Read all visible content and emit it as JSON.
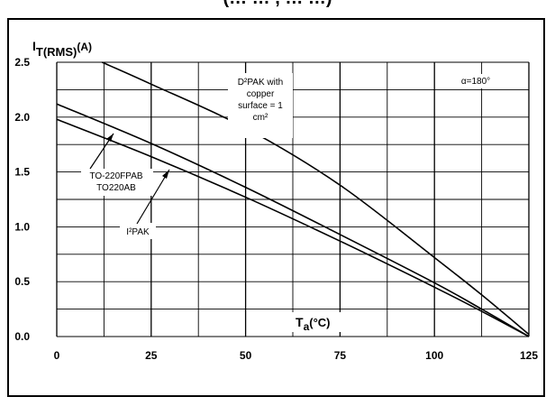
{
  "header": {
    "cut_text": "(… … , … …)"
  },
  "chart_data": {
    "type": "line",
    "ylabel": "I",
    "ylabel_sub": "T(RMS)",
    "ylabel_unit": "(A)",
    "xlabel": "T",
    "xlabel_sub": "a",
    "xlabel_unit": "(°C)",
    "xlim": [
      0,
      125
    ],
    "ylim": [
      0,
      2.5
    ],
    "x_ticks": [
      0,
      25,
      50,
      75,
      100,
      125
    ],
    "y_ticks": [
      0.0,
      0.5,
      1.0,
      1.5,
      2.0,
      2.5
    ],
    "x_tick_labels": [
      "0",
      "25",
      "50",
      "75",
      "100",
      "125"
    ],
    "y_tick_labels": [
      "0.0",
      "0.5",
      "1.0",
      "1.5",
      "2.0",
      "2.5"
    ],
    "grid": true,
    "annotations": {
      "condition": "α=180°",
      "d2pak": [
        "D²PAK with",
        "copper",
        "surface = 1",
        "cm²"
      ],
      "to220": [
        "TO-220FPAB",
        "TO220AB"
      ],
      "i2pak": "I²PAK"
    },
    "series": [
      {
        "key": "d2pak",
        "x": [
          12,
          25,
          50,
          75,
          100,
          112.5,
          125
        ],
        "y": [
          2.5,
          2.3,
          1.9,
          1.38,
          0.72,
          0.38,
          0.02
        ]
      },
      {
        "key": "to220",
        "x": [
          0,
          25,
          50,
          75,
          100,
          112.5,
          125
        ],
        "y": [
          2.12,
          1.76,
          1.36,
          0.93,
          0.49,
          0.25,
          0.0
        ]
      },
      {
        "key": "i2pak",
        "x": [
          0,
          25,
          50,
          75,
          100,
          112.5,
          125
        ],
        "y": [
          1.98,
          1.64,
          1.27,
          0.87,
          0.45,
          0.23,
          0.0
        ]
      }
    ]
  }
}
